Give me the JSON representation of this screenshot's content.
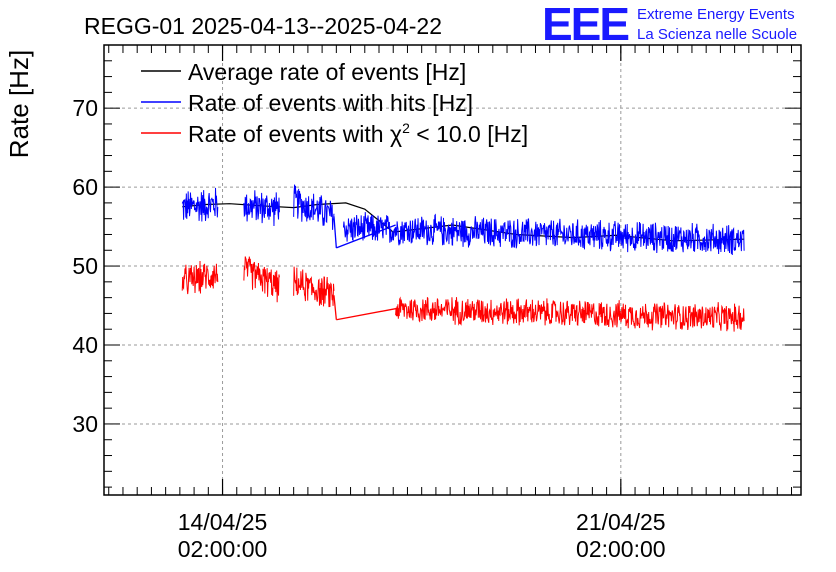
{
  "header": {
    "title": "REGG-01 2025-04-13--2025-04-22",
    "logo_text": "EEE",
    "logo_line1": "Extreme Energy Events",
    "logo_line2": "La Scienza nelle Scuole"
  },
  "chart_data": {
    "type": "line",
    "title": "REGG-01 2025-04-13--2025-04-22",
    "xlabel": "",
    "ylabel": "Rate [Hz]",
    "ylim": [
      21,
      78
    ],
    "yticks": [
      30,
      40,
      50,
      60,
      70
    ],
    "ytick_labels": [
      "30",
      "40",
      "50",
      "60",
      "70"
    ],
    "xlim": [
      "2025-04-12 00:00",
      "2025-04-24 06:00"
    ],
    "xticks": [
      {
        "x": "2025-04-14 02:00",
        "line1": "14/04/25",
        "line2": "02:00:00"
      },
      {
        "x": "2025-04-21 02:00",
        "line1": "21/04/25",
        "line2": "02:00:00"
      }
    ],
    "grid": true,
    "legend_position": "top-left",
    "series": [
      {
        "name": "Average rate of events [Hz]",
        "color": "#000000",
        "x": [
          "2025-04-13 09:00",
          "2025-04-13 19:00",
          "2025-04-14 05:00",
          "2025-04-14 20:00",
          "2025-04-15 08:00",
          "2025-04-15 18:00",
          "2025-04-16 06:00",
          "2025-04-16 14:00",
          "2025-04-17 02:00",
          "2025-04-18 03:00",
          "2025-04-19 06:00",
          "2025-04-20 06:00",
          "2025-04-21 00:00",
          "2025-04-22 00:00",
          "2025-04-23 06:00"
        ],
        "y": [
          57.5,
          57.8,
          57.9,
          57.6,
          57.4,
          57.8,
          58.0,
          57.2,
          54.3,
          55.2,
          54.0,
          53.6,
          53.9,
          53.2,
          53.4
        ]
      },
      {
        "name": "Rate of events with hits [Hz]",
        "color": "#0000ff",
        "segments": [
          {
            "x": [
              "2025-04-13 09:00",
              "2025-04-14 00:00"
            ],
            "y": [
              57.4,
              57.9
            ],
            "spread": 2.5
          },
          {
            "x": [
              "2025-04-14 11:00",
              "2025-04-15 02:00"
            ],
            "y": [
              57.6,
              57.3
            ],
            "spread": 2.5
          },
          {
            "x": [
              "2025-04-15 08:00",
              "2025-04-16 01:00"
            ],
            "y": [
              58.2,
              56.3
            ],
            "spread": 2.5
          },
          {
            "x": [
              "2025-04-16 05:00",
              "2025-04-23 06:00"
            ],
            "y": [
              54.8,
              53.3
            ],
            "spread": 2.2
          }
        ],
        "connectors": [
          {
            "x": [
              "2025-04-16 01:00",
              "2025-04-16 02:00"
            ],
            "y": [
              56.3,
              52.3
            ]
          },
          {
            "x": [
              "2025-04-16 02:00",
              "2025-04-17 03:00"
            ],
            "y": [
              52.3,
              55.2
            ]
          }
        ]
      },
      {
        "name": "Rate of events with χ² < 10.0 [Hz]",
        "color": "#ff0000",
        "segments": [
          {
            "x": [
              "2025-04-13 09:00",
              "2025-04-14 00:00"
            ],
            "y": [
              48.0,
              49.0
            ],
            "spread": 2.3
          },
          {
            "x": [
              "2025-04-14 11:00",
              "2025-04-15 02:00"
            ],
            "y": [
              49.6,
              47.3
            ],
            "spread": 2.3
          },
          {
            "x": [
              "2025-04-15 08:00",
              "2025-04-16 01:00"
            ],
            "y": [
              47.9,
              46.3
            ],
            "spread": 2.3
          },
          {
            "x": [
              "2025-04-17 03:00",
              "2025-04-23 06:00"
            ],
            "y": [
              44.6,
              43.4
            ],
            "spread": 2.0
          }
        ],
        "connectors": [
          {
            "x": [
              "2025-04-16 01:00",
              "2025-04-16 02:00"
            ],
            "y": [
              46.3,
              43.2
            ]
          },
          {
            "x": [
              "2025-04-16 02:00",
              "2025-04-17 03:00"
            ],
            "y": [
              43.2,
              44.6
            ]
          }
        ]
      }
    ]
  }
}
